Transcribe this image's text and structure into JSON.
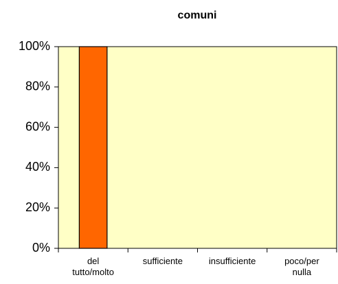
{
  "chart_data": {
    "type": "bar",
    "title": "comuni",
    "categories": [
      "del tutto/molto",
      "sufficiente",
      "insufficiente",
      "poco/per nulla"
    ],
    "values": [
      100,
      0,
      0,
      0
    ],
    "color": "#ff6600",
    "ylim": [
      0,
      100
    ],
    "yticks": [
      {
        "value": 0,
        "label": "0%"
      },
      {
        "value": 20,
        "label": "20%"
      },
      {
        "value": 40,
        "label": "40%"
      },
      {
        "value": 60,
        "label": "60%"
      },
      {
        "value": 80,
        "label": "80%"
      },
      {
        "value": 100,
        "label": "100%"
      }
    ],
    "grid": false
  }
}
